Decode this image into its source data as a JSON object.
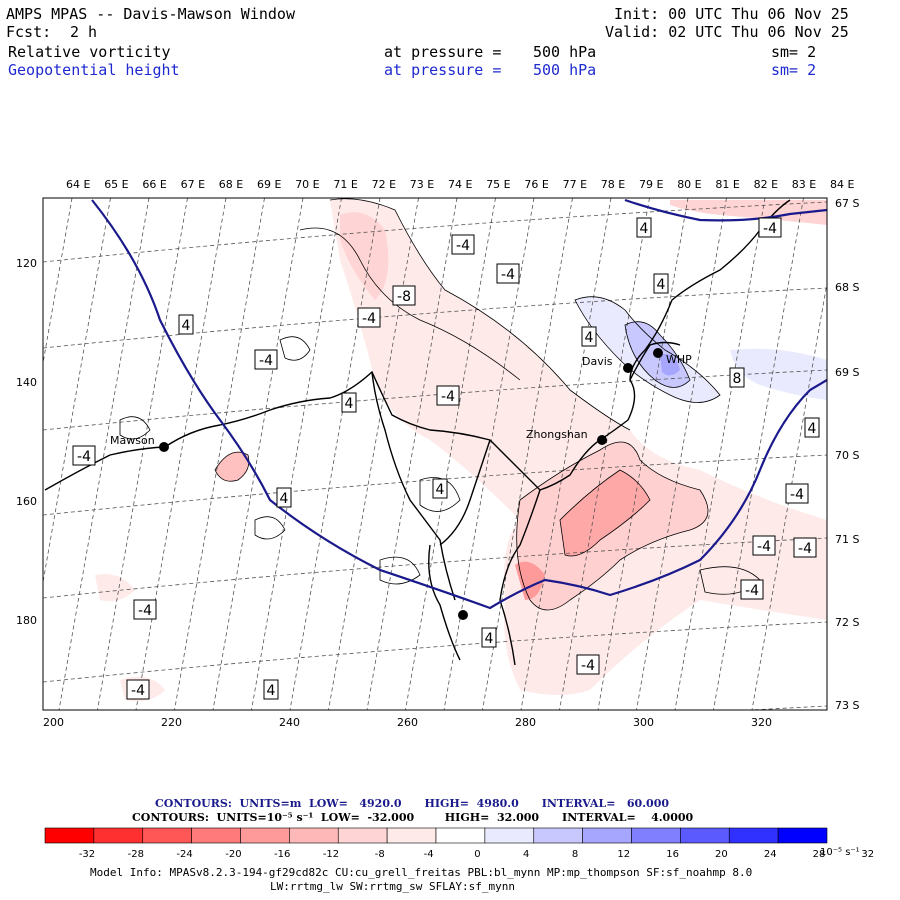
{
  "header": {
    "title": "AMPS MPAS -- Davis-Mawson Window",
    "fcst_label": "Fcst:",
    "fcst_value": "2 h",
    "init": "Init: 00 UTC Thu 06 Nov 25",
    "valid": "Valid: 02 UTC Thu 06 Nov 25",
    "field1": {
      "name": "Relative vorticity",
      "pressure_label": "at pressure =",
      "pressure": "500 hPa",
      "sm": "sm= 2"
    },
    "field2": {
      "name": "Geopotential height",
      "pressure_label": "at pressure =",
      "pressure": "500 hPa",
      "sm": "sm= 2"
    }
  },
  "axes": {
    "top_labels": [
      "64 E",
      "65 E",
      "66 E",
      "67 E",
      "68 E",
      "69 E",
      "70 E",
      "71 E",
      "72 E",
      "73 E",
      "74 E",
      "75 E",
      "76 E",
      "77 E",
      "78 E",
      "79 E",
      "80 E",
      "81 E",
      "82 E",
      "83 E",
      "84 E"
    ],
    "right_labels": [
      "67 S",
      "68 S",
      "69 S",
      "70 S",
      "71 S",
      "72 S",
      "73 S"
    ],
    "bottom_labels": [
      "200",
      "220",
      "240",
      "260",
      "280",
      "300",
      "320"
    ],
    "left_labels": [
      "120",
      "140",
      "160",
      "180"
    ]
  },
  "stations": [
    {
      "name": "Mawson"
    },
    {
      "name": "Davis"
    },
    {
      "name": "Zhongshan"
    },
    {
      "name": "WHP"
    }
  ],
  "contour_labels": [
    "-4",
    "4",
    "-4",
    "-8",
    "-4",
    "4",
    "-4",
    "4",
    "-4",
    "4",
    "4",
    "4",
    "-4",
    "4",
    "-4",
    "-4",
    "-4",
    "8",
    "8",
    "4",
    "-4",
    "-4",
    "-4",
    "-4",
    "-4",
    "4",
    "-8",
    "4"
  ],
  "colors": {
    "height_contour": "#1a1a8c",
    "coast": "#000000",
    "negative": "#ff0000",
    "positive": "#0000ff"
  },
  "bottom": {
    "height_contours": "CONTOURS:  UNITS=m  LOW=   4920.0      HIGH=  4980.0      INTERVAL=   60.000",
    "vort_contours": "CONTOURS:  UNITS=10⁻⁵ s⁻¹  LOW=  -32.000        HIGH=  32.000      INTERVAL=    4.0000",
    "colorbar_labels": [
      "-32",
      "-28",
      "-24",
      "-20",
      "-16",
      "-12",
      "-8",
      "-4",
      "0",
      "4",
      "8",
      "12",
      "16",
      "20",
      "24",
      "28",
      "32"
    ],
    "colorbar_unit": "10⁻⁵ s⁻¹",
    "model_info_1": "Model Info: MPASv8.2.3-194-gf29cd82c CU:cu_grell_freitas PBL:bl_mynn MP:mp_thompson SF:sf_noahmp 8.0",
    "model_info_2": "LW:rrtmg_lw SW:rrtmg_sw SFLAY:sf_mynn"
  },
  "colorbar_colors": [
    "#ff0000",
    "#ff3030",
    "#ff5656",
    "#ff7a7a",
    "#ff9a9a",
    "#ffb8b8",
    "#ffd4d4",
    "#ffeaea",
    "#ffffff",
    "#ffffff",
    "#eaeaff",
    "#c8c8ff",
    "#a6a6ff",
    "#8080ff",
    "#5a5aff",
    "#3030ff",
    "#0000ff"
  ]
}
